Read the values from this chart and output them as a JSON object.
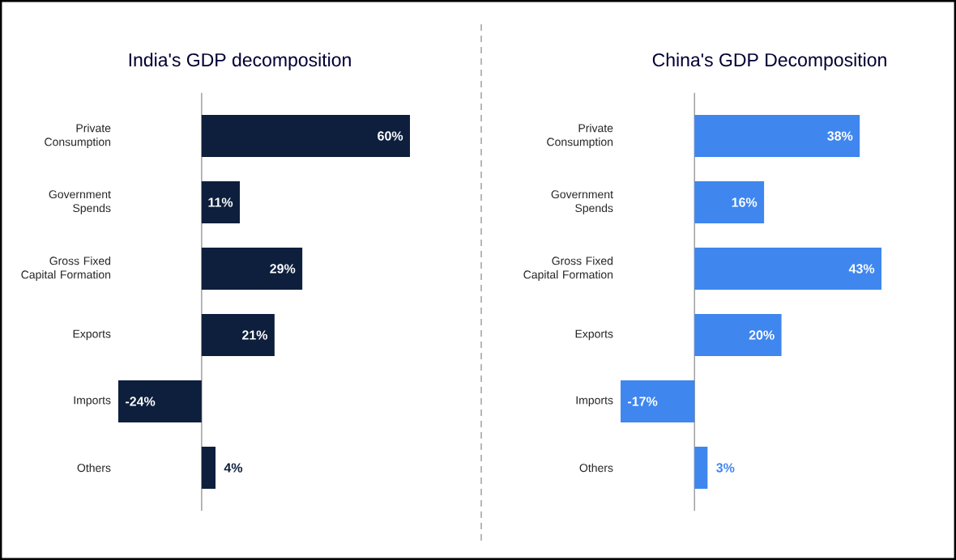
{
  "chart_data": [
    {
      "type": "bar",
      "orientation": "horizontal",
      "title": "India's GDP decomposition",
      "categories": [
        "Private Consumption",
        "Government Spends",
        "Gross Fixed Capital Formation",
        "Exports",
        "Imports",
        "Others"
      ],
      "values": [
        60,
        11,
        29,
        21,
        -24,
        4
      ],
      "value_labels": [
        "60%",
        "11%",
        "29%",
        "21%",
        "-24%",
        "4%"
      ],
      "color": "#0d1f3c"
    },
    {
      "type": "bar",
      "orientation": "horizontal",
      "title": "China's GDP Decomposition",
      "categories": [
        "Private Consumption",
        "Government Spends",
        "Gross Fixed Capital Formation",
        "Exports",
        "Imports",
        "Others"
      ],
      "values": [
        38,
        16,
        43,
        20,
        -17,
        3
      ],
      "value_labels": [
        "38%",
        "16%",
        "43%",
        "20%",
        "-17%",
        "3%"
      ],
      "color": "#3f86ef"
    }
  ]
}
